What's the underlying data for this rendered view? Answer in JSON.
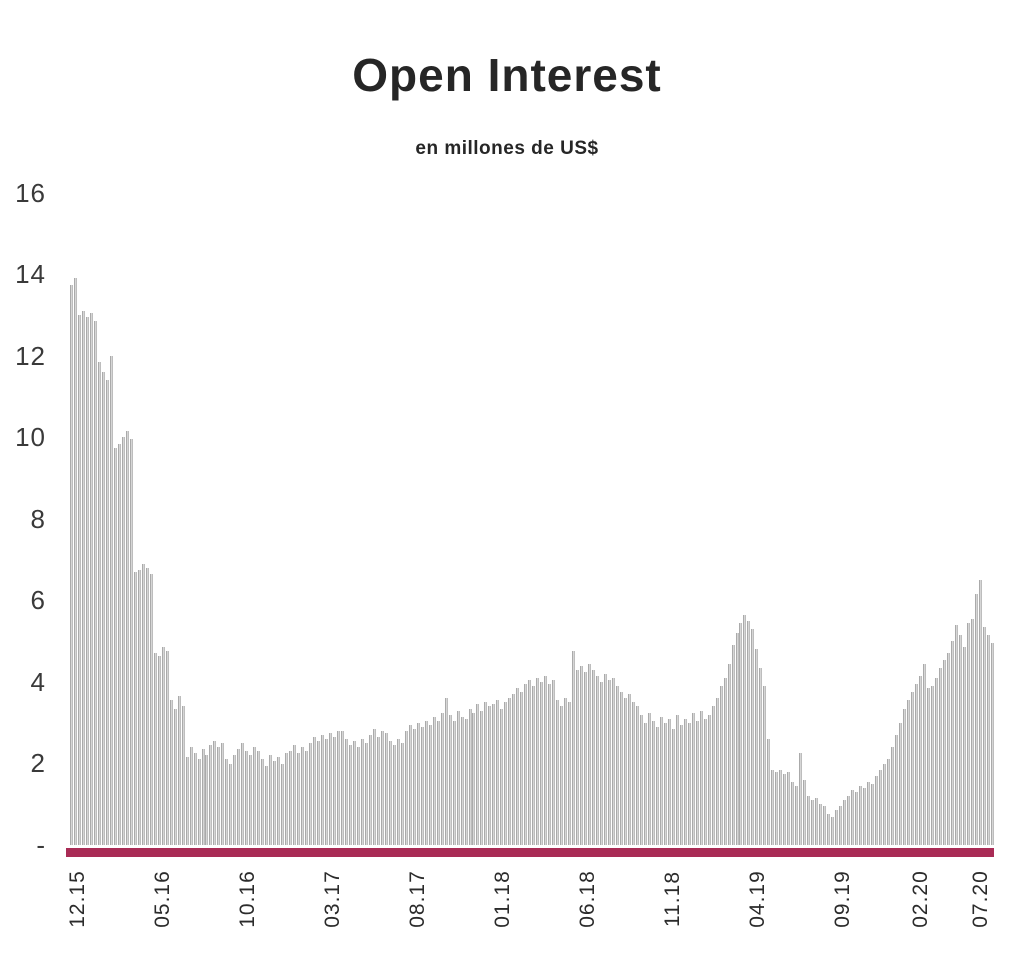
{
  "page": {
    "background": "#ffffff"
  },
  "chart_data": {
    "type": "bar",
    "title": "Open Interest",
    "subtitle": "en millones de US$",
    "xlabel": "",
    "ylabel": "",
    "ylim": [
      0,
      16
    ],
    "grid": false,
    "legend": false,
    "frequency_hint": "one thin bar per week",
    "x_tick_labels": [
      "12.15",
      "05.16",
      "10.16",
      "03.17",
      "08.17",
      "01.18",
      "06.18",
      "11.18",
      "04.19",
      "09.19",
      "02.20",
      "07.20"
    ],
    "categories": [
      "12.15",
      "05.16",
      "10.16",
      "03.17",
      "08.17",
      "01.18",
      "06.18",
      "11.18",
      "04.19",
      "09.19",
      "02.20",
      "07.20"
    ],
    "y_ticks": [
      {
        "label": "16",
        "value": 16
      },
      {
        "label": "14",
        "value": 14
      },
      {
        "label": "12",
        "value": 12
      },
      {
        "label": "10",
        "value": 10
      },
      {
        "label": "8",
        "value": 8
      },
      {
        "label": "6",
        "value": 6
      },
      {
        "label": "4",
        "value": 4
      },
      {
        "label": "2",
        "value": 2
      },
      {
        "label": "-",
        "value": 0
      }
    ],
    "series": [
      {
        "name": "Open Interest (en millones de US$)",
        "values": [
          13.75,
          13.9,
          13.0,
          13.1,
          12.95,
          13.05,
          12.85,
          11.85,
          11.6,
          11.4,
          12.0,
          9.75,
          9.85,
          10.0,
          10.15,
          9.95,
          6.7,
          6.75,
          6.9,
          6.8,
          6.65,
          4.7,
          4.65,
          4.85,
          4.75,
          3.55,
          3.35,
          3.65,
          3.4,
          2.15,
          2.4,
          2.25,
          2.1,
          2.35,
          2.2,
          2.45,
          2.55,
          2.4,
          2.5,
          2.1,
          2.0,
          2.2,
          2.35,
          2.5,
          2.3,
          2.2,
          2.4,
          2.3,
          2.1,
          1.95,
          2.2,
          2.05,
          2.15,
          2.0,
          2.25,
          2.3,
          2.45,
          2.25,
          2.4,
          2.3,
          2.5,
          2.65,
          2.55,
          2.7,
          2.6,
          2.75,
          2.65,
          2.8,
          2.8,
          2.6,
          2.45,
          2.55,
          2.4,
          2.6,
          2.5,
          2.7,
          2.85,
          2.65,
          2.8,
          2.75,
          2.55,
          2.45,
          2.6,
          2.5,
          2.8,
          2.95,
          2.85,
          3.0,
          2.9,
          3.05,
          2.95,
          3.15,
          3.05,
          3.25,
          3.6,
          3.2,
          3.05,
          3.3,
          3.15,
          3.1,
          3.35,
          3.25,
          3.45,
          3.3,
          3.5,
          3.4,
          3.45,
          3.55,
          3.35,
          3.5,
          3.6,
          3.7,
          3.85,
          3.75,
          3.95,
          4.05,
          3.9,
          4.1,
          4.0,
          4.15,
          3.95,
          4.05,
          3.55,
          3.4,
          3.6,
          3.5,
          4.75,
          4.3,
          4.4,
          4.25,
          4.45,
          4.3,
          4.15,
          4.0,
          4.2,
          4.05,
          4.1,
          3.9,
          3.75,
          3.6,
          3.7,
          3.5,
          3.4,
          3.2,
          3.0,
          3.25,
          3.05,
          2.9,
          3.15,
          3.0,
          3.1,
          2.85,
          3.2,
          2.95,
          3.1,
          3.0,
          3.25,
          3.05,
          3.3,
          3.1,
          3.2,
          3.4,
          3.6,
          3.9,
          4.1,
          4.45,
          4.9,
          5.2,
          5.45,
          5.65,
          5.5,
          5.3,
          4.8,
          4.35,
          3.9,
          2.6,
          1.85,
          1.8,
          1.85,
          1.75,
          1.8,
          1.55,
          1.45,
          2.25,
          1.6,
          1.2,
          1.1,
          1.15,
          1.0,
          0.95,
          0.75,
          0.7,
          0.85,
          0.95,
          1.1,
          1.2,
          1.35,
          1.3,
          1.45,
          1.4,
          1.55,
          1.5,
          1.7,
          1.85,
          2.0,
          2.1,
          2.4,
          2.7,
          3.0,
          3.35,
          3.55,
          3.75,
          3.95,
          4.15,
          4.45,
          3.85,
          3.9,
          4.1,
          4.35,
          4.55,
          4.7,
          5.0,
          5.4,
          5.15,
          4.85,
          5.45,
          5.55,
          6.15,
          6.5,
          5.35,
          5.15,
          4.95
        ]
      }
    ],
    "colors": {
      "bar_edge": "#8f8f8f",
      "bar_fill": "#e2e2e2",
      "baseline": "#a92b55",
      "title_text": "#262626",
      "axis_text": "#3a3a3a",
      "x_axis_text": "#2b2b2b",
      "background": "#ffffff"
    }
  }
}
